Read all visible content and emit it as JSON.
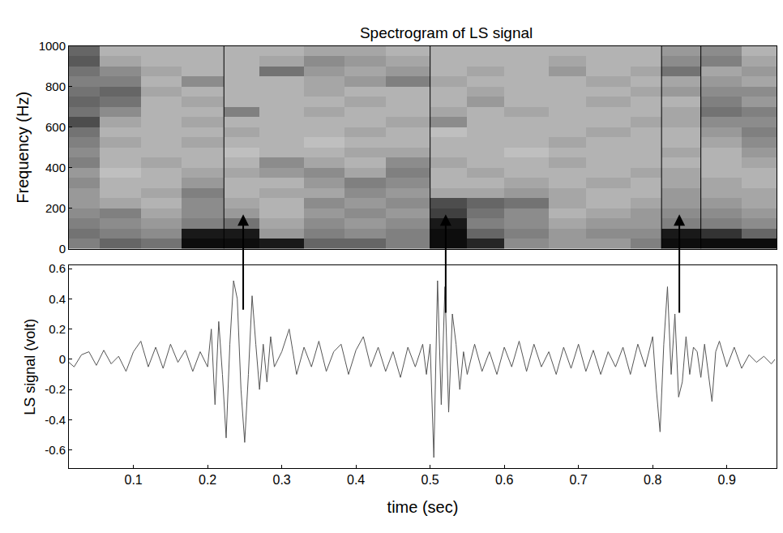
{
  "chart_data": [
    {
      "type": "heatmap",
      "title": "Spectrogram of LS signal",
      "ylabel": "Frequency (Hz)",
      "tick_labels": "y",
      "xlim": [
        0.013,
        0.967
      ],
      "ylim": [
        0,
        1000
      ],
      "yticks": [
        0,
        200,
        400,
        600,
        800,
        1000
      ],
      "zlim": [
        0,
        1
      ],
      "time_edges": [
        0.013,
        0.055,
        0.11,
        0.165,
        0.222,
        0.27,
        0.33,
        0.385,
        0.44,
        0.5,
        0.55,
        0.6,
        0.66,
        0.71,
        0.77,
        0.812,
        0.865,
        0.92,
        0.967
      ],
      "frequency_edges": [
        0,
        50,
        100,
        150,
        200,
        250,
        300,
        350,
        400,
        450,
        500,
        550,
        600,
        650,
        700,
        750,
        800,
        850,
        900,
        950,
        1000
      ],
      "cells": [
        [
          0.5,
          0.6,
          0.55,
          0.95,
          0.95,
          0.9,
          0.6,
          0.6,
          0.5,
          0.95,
          0.85,
          0.45,
          0.4,
          0.4,
          0.5,
          0.95,
          0.95,
          0.95
        ],
        [
          0.55,
          0.5,
          0.45,
          0.9,
          0.9,
          0.4,
          0.5,
          0.45,
          0.5,
          0.95,
          0.6,
          0.5,
          0.4,
          0.45,
          0.45,
          0.9,
          0.8,
          0.6
        ],
        [
          0.5,
          0.45,
          0.4,
          0.5,
          0.55,
          0.35,
          0.45,
          0.4,
          0.45,
          0.9,
          0.5,
          0.45,
          0.35,
          0.4,
          0.4,
          0.5,
          0.5,
          0.45
        ],
        [
          0.45,
          0.5,
          0.35,
          0.45,
          0.4,
          0.3,
          0.4,
          0.45,
          0.4,
          0.75,
          0.55,
          0.45,
          0.3,
          0.35,
          0.4,
          0.45,
          0.45,
          0.4
        ],
        [
          0.4,
          0.35,
          0.3,
          0.45,
          0.35,
          0.3,
          0.45,
          0.4,
          0.45,
          0.7,
          0.6,
          0.55,
          0.35,
          0.3,
          0.35,
          0.4,
          0.4,
          0.35
        ],
        [
          0.4,
          0.3,
          0.35,
          0.5,
          0.3,
          0.35,
          0.35,
          0.45,
          0.4,
          0.35,
          0.35,
          0.4,
          0.35,
          0.3,
          0.3,
          0.4,
          0.35,
          0.35
        ],
        [
          0.45,
          0.3,
          0.3,
          0.4,
          0.3,
          0.3,
          0.4,
          0.5,
          0.45,
          0.3,
          0.3,
          0.35,
          0.3,
          0.35,
          0.3,
          0.35,
          0.35,
          0.3
        ],
        [
          0.4,
          0.25,
          0.3,
          0.35,
          0.35,
          0.4,
          0.45,
          0.35,
          0.5,
          0.3,
          0.35,
          0.3,
          0.3,
          0.3,
          0.35,
          0.35,
          0.3,
          0.3
        ],
        [
          0.5,
          0.3,
          0.35,
          0.3,
          0.3,
          0.45,
          0.35,
          0.3,
          0.45,
          0.35,
          0.3,
          0.3,
          0.35,
          0.3,
          0.3,
          0.3,
          0.3,
          0.35
        ],
        [
          0.45,
          0.3,
          0.3,
          0.3,
          0.25,
          0.3,
          0.3,
          0.35,
          0.35,
          0.3,
          0.3,
          0.25,
          0.3,
          0.3,
          0.3,
          0.35,
          0.3,
          0.4
        ],
        [
          0.5,
          0.35,
          0.3,
          0.35,
          0.3,
          0.3,
          0.25,
          0.3,
          0.3,
          0.3,
          0.3,
          0.3,
          0.35,
          0.3,
          0.3,
          0.3,
          0.35,
          0.45
        ],
        [
          0.55,
          0.3,
          0.3,
          0.3,
          0.35,
          0.3,
          0.3,
          0.35,
          0.3,
          0.25,
          0.3,
          0.3,
          0.3,
          0.35,
          0.3,
          0.3,
          0.4,
          0.5
        ],
        [
          0.7,
          0.35,
          0.3,
          0.35,
          0.3,
          0.3,
          0.3,
          0.3,
          0.35,
          0.45,
          0.3,
          0.3,
          0.3,
          0.3,
          0.35,
          0.35,
          0.45,
          0.45
        ],
        [
          0.55,
          0.45,
          0.3,
          0.3,
          0.5,
          0.3,
          0.35,
          0.3,
          0.3,
          0.35,
          0.3,
          0.35,
          0.3,
          0.3,
          0.3,
          0.35,
          0.55,
          0.5
        ],
        [
          0.6,
          0.55,
          0.3,
          0.35,
          0.3,
          0.3,
          0.3,
          0.35,
          0.3,
          0.3,
          0.4,
          0.3,
          0.3,
          0.35,
          0.3,
          0.3,
          0.5,
          0.4
        ],
        [
          0.55,
          0.6,
          0.35,
          0.3,
          0.3,
          0.3,
          0.35,
          0.3,
          0.3,
          0.3,
          0.35,
          0.3,
          0.3,
          0.3,
          0.35,
          0.4,
          0.45,
          0.45
        ],
        [
          0.5,
          0.5,
          0.3,
          0.45,
          0.3,
          0.3,
          0.35,
          0.4,
          0.5,
          0.35,
          0.3,
          0.3,
          0.3,
          0.35,
          0.3,
          0.35,
          0.4,
          0.35
        ],
        [
          0.55,
          0.45,
          0.35,
          0.3,
          0.3,
          0.55,
          0.4,
          0.35,
          0.4,
          0.3,
          0.35,
          0.3,
          0.4,
          0.3,
          0.35,
          0.55,
          0.35,
          0.4
        ],
        [
          0.65,
          0.35,
          0.3,
          0.3,
          0.3,
          0.35,
          0.45,
          0.4,
          0.35,
          0.3,
          0.3,
          0.3,
          0.35,
          0.3,
          0.3,
          0.45,
          0.5,
          0.35
        ],
        [
          0.6,
          0.3,
          0.3,
          0.3,
          0.3,
          0.3,
          0.35,
          0.35,
          0.3,
          0.3,
          0.3,
          0.3,
          0.3,
          0.3,
          0.3,
          0.4,
          0.45,
          0.3
        ]
      ],
      "marker_lines": [
        0.222,
        0.5,
        0.812,
        0.865
      ]
    },
    {
      "type": "line",
      "xlabel": "time (sec)",
      "ylabel": "LS signal (volt)",
      "color": "#555555",
      "xlim": [
        0.013,
        0.967
      ],
      "xticks": [
        0.1,
        0.2,
        0.3,
        0.4,
        0.5,
        0.6,
        0.7,
        0.8,
        0.9
      ],
      "ylim": [
        -0.72,
        0.62
      ],
      "yticks": [
        -0.6,
        -0.4,
        -0.2,
        0,
        0.2,
        0.4,
        0.6
      ],
      "x": [
        0.013,
        0.02,
        0.03,
        0.04,
        0.05,
        0.06,
        0.07,
        0.08,
        0.09,
        0.1,
        0.11,
        0.12,
        0.13,
        0.14,
        0.15,
        0.16,
        0.17,
        0.18,
        0.19,
        0.2,
        0.205,
        0.21,
        0.215,
        0.22,
        0.225,
        0.23,
        0.235,
        0.24,
        0.245,
        0.25,
        0.255,
        0.26,
        0.265,
        0.27,
        0.275,
        0.28,
        0.285,
        0.29,
        0.3,
        0.31,
        0.32,
        0.33,
        0.34,
        0.35,
        0.36,
        0.37,
        0.38,
        0.39,
        0.4,
        0.41,
        0.42,
        0.43,
        0.44,
        0.45,
        0.46,
        0.47,
        0.48,
        0.49,
        0.495,
        0.5,
        0.505,
        0.51,
        0.515,
        0.52,
        0.525,
        0.53,
        0.535,
        0.54,
        0.545,
        0.55,
        0.56,
        0.57,
        0.58,
        0.59,
        0.6,
        0.61,
        0.62,
        0.63,
        0.64,
        0.65,
        0.66,
        0.67,
        0.68,
        0.69,
        0.7,
        0.71,
        0.72,
        0.73,
        0.74,
        0.75,
        0.76,
        0.77,
        0.78,
        0.79,
        0.8,
        0.805,
        0.81,
        0.815,
        0.82,
        0.825,
        0.83,
        0.835,
        0.84,
        0.845,
        0.85,
        0.855,
        0.86,
        0.865,
        0.87,
        0.875,
        0.88,
        0.885,
        0.89,
        0.9,
        0.91,
        0.92,
        0.93,
        0.94,
        0.95,
        0.96,
        0.965
      ],
      "values": [
        -0.02,
        -0.05,
        0.03,
        0.05,
        -0.04,
        0.06,
        -0.03,
        0.02,
        -0.08,
        0.05,
        0.12,
        -0.05,
        0.08,
        -0.06,
        0.1,
        -0.02,
        0.06,
        -0.08,
        0.05,
        -0.05,
        0.2,
        -0.3,
        0.25,
        -0.1,
        -0.52,
        0.1,
        0.52,
        0.4,
        -0.2,
        -0.55,
        -0.1,
        0.42,
        0.1,
        -0.2,
        0.1,
        -0.15,
        0.15,
        -0.05,
        0.05,
        0.2,
        -0.1,
        0.08,
        -0.05,
        0.12,
        -0.08,
        0.05,
        0.1,
        -0.1,
        0.06,
        0.15,
        -0.05,
        0.08,
        -0.08,
        0.05,
        -0.12,
        0.08,
        -0.05,
        0.1,
        -0.1,
        0.1,
        -0.65,
        0.52,
        -0.3,
        0.48,
        -0.35,
        0.3,
        0.1,
        -0.2,
        0.05,
        -0.1,
        0.1,
        -0.08,
        0.05,
        -0.1,
        0.08,
        -0.05,
        0.12,
        -0.08,
        0.1,
        -0.05,
        0.05,
        -0.1,
        0.08,
        -0.06,
        0.1,
        -0.08,
        0.06,
        -0.1,
        0.05,
        -0.05,
        0.08,
        -0.1,
        0.1,
        -0.05,
        0.15,
        -0.2,
        -0.48,
        0.1,
        0.48,
        -0.1,
        0.3,
        -0.25,
        -0.15,
        0.15,
        -0.1,
        0.08,
        0.05,
        -0.12,
        0.1,
        -0.1,
        -0.28,
        0.05,
        0.12,
        -0.05,
        0.08,
        -0.06,
        0.03,
        -0.02,
        0.02,
        -0.03,
        0
      ],
      "arrows": [
        {
          "time": 0.248,
          "from": 0.32,
          "to": 170
        },
        {
          "time": 0.521,
          "from": 0.3,
          "to": 170
        },
        {
          "time": 0.836,
          "from": 0.3,
          "to": 170
        }
      ]
    }
  ]
}
